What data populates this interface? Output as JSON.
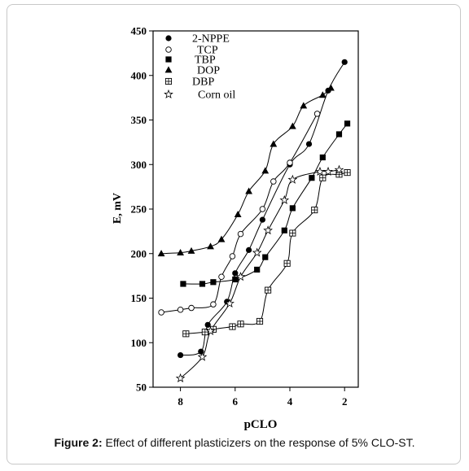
{
  "caption": {
    "label": "Figure 2:",
    "text": " Effect of different plasticizers on the response of 5% CLO-ST."
  },
  "chart_data": {
    "type": "scatter",
    "xlabel": "pCLO",
    "ylabel": "E, mV",
    "xlim": [
      9,
      1.5
    ],
    "ylim": [
      50,
      450
    ],
    "x_ticks": [
      8,
      6,
      4,
      2
    ],
    "y_ticks": [
      50,
      100,
      150,
      200,
      250,
      300,
      350,
      400,
      450
    ],
    "x_reversed": true,
    "legend_position": "top-left",
    "series": [
      {
        "name": "2-NPPE",
        "marker": "filled-circle",
        "points": [
          [
            8.0,
            86
          ],
          [
            7.25,
            90
          ],
          [
            7.0,
            120
          ],
          [
            6.3,
            146
          ],
          [
            6.0,
            178
          ],
          [
            5.5,
            204
          ],
          [
            5.0,
            238
          ],
          [
            4.0,
            300
          ],
          [
            3.3,
            323
          ],
          [
            2.6,
            383
          ],
          [
            2.0,
            415
          ]
        ]
      },
      {
        "name": "TCP",
        "marker": "open-circle",
        "points": [
          [
            8.7,
            134
          ],
          [
            8.0,
            137
          ],
          [
            7.6,
            139
          ],
          [
            6.8,
            143
          ],
          [
            6.5,
            174
          ],
          [
            6.1,
            197
          ],
          [
            5.8,
            222
          ],
          [
            5.0,
            250
          ],
          [
            4.6,
            281
          ],
          [
            4.0,
            302
          ],
          [
            3.0,
            357
          ]
        ]
      },
      {
        "name": "TBP",
        "marker": "filled-square",
        "points": [
          [
            7.9,
            166
          ],
          [
            7.2,
            166
          ],
          [
            6.8,
            168
          ],
          [
            6.0,
            171
          ],
          [
            5.2,
            182
          ],
          [
            4.9,
            196
          ],
          [
            4.2,
            226
          ],
          [
            3.9,
            251
          ],
          [
            3.2,
            285
          ],
          [
            2.8,
            308
          ],
          [
            2.2,
            334
          ],
          [
            1.9,
            346
          ]
        ]
      },
      {
        "name": "DOP",
        "marker": "filled-triangle",
        "points": [
          [
            8.7,
            200
          ],
          [
            8.0,
            201
          ],
          [
            7.6,
            203
          ],
          [
            6.9,
            208
          ],
          [
            6.5,
            216
          ],
          [
            5.9,
            244
          ],
          [
            5.5,
            270
          ],
          [
            4.9,
            293
          ],
          [
            4.6,
            323
          ],
          [
            3.9,
            343
          ],
          [
            3.5,
            366
          ],
          [
            2.8,
            378
          ],
          [
            2.5,
            386
          ]
        ]
      },
      {
        "name": "DBP",
        "marker": "boxed-plus",
        "points": [
          [
            7.8,
            110
          ],
          [
            7.1,
            112
          ],
          [
            6.8,
            115
          ],
          [
            6.1,
            118
          ],
          [
            5.8,
            121
          ],
          [
            5.1,
            124
          ],
          [
            4.8,
            159
          ],
          [
            4.1,
            189
          ],
          [
            3.9,
            223
          ],
          [
            3.1,
            249
          ],
          [
            2.8,
            285
          ],
          [
            2.2,
            289
          ],
          [
            1.9,
            291
          ]
        ]
      },
      {
        "name": "Corn oil",
        "marker": "open-star",
        "points": [
          [
            8.0,
            60
          ],
          [
            7.2,
            84
          ],
          [
            6.9,
            113
          ],
          [
            6.2,
            144
          ],
          [
            5.8,
            174
          ],
          [
            5.2,
            201
          ],
          [
            4.8,
            226
          ],
          [
            4.2,
            260
          ],
          [
            3.9,
            283
          ],
          [
            2.9,
            292
          ],
          [
            2.6,
            292
          ],
          [
            2.2,
            294
          ]
        ]
      }
    ]
  }
}
